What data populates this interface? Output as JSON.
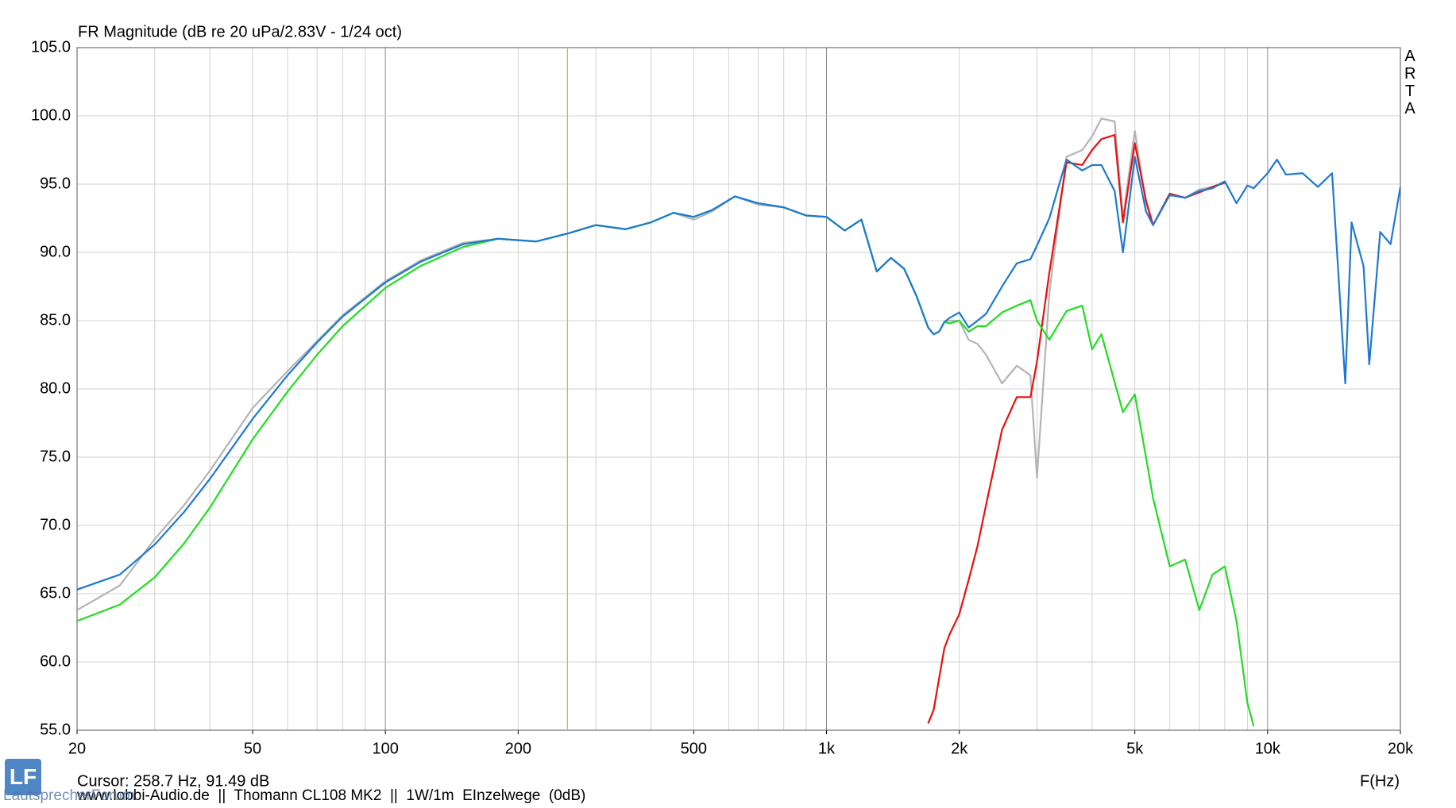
{
  "chart_data": {
    "type": "line",
    "title": "FR Magnitude (dB re 20 uPa/2.83V - 1/24 oct)",
    "side_label": "ARTA",
    "x_label": "F(Hz)",
    "cursor": {
      "label": "Cursor: 258.7 Hz, 91.49 dB",
      "x": 258.7,
      "color": "#c8c800"
    },
    "footer": "www.lobbi-Audio.de  ||  Thomann CL108 MK2  ||  1W/1m  EInzelwege  (0dB)",
    "watermark": "LautsprecherForum",
    "logo": "LF",
    "xscale": "log",
    "grid": true,
    "xlim": [
      20,
      20000
    ],
    "xticks": [
      20,
      50,
      100,
      200,
      500,
      {
        "value": 1000,
        "label": "1k"
      },
      {
        "value": 2000,
        "label": "2k"
      },
      {
        "value": 5000,
        "label": "5k"
      },
      {
        "value": 10000,
        "label": "10k"
      },
      {
        "value": 20000,
        "label": "20k"
      }
    ],
    "ylim": [
      55,
      105
    ],
    "yticks": [
      {
        "value": 55,
        "label": "55.0"
      },
      {
        "value": 60,
        "label": "60.0"
      },
      {
        "value": 65,
        "label": "65.0"
      },
      {
        "value": 70,
        "label": "70.0"
      },
      {
        "value": 75,
        "label": "75.0"
      },
      {
        "value": 80,
        "label": "80.0"
      },
      {
        "value": 85,
        "label": "85.0"
      },
      {
        "value": 90,
        "label": "90.0"
      },
      {
        "value": 95,
        "label": "95.0"
      },
      {
        "value": 100,
        "label": "100.0"
      },
      {
        "value": 105,
        "label": "105.0"
      }
    ],
    "x": [
      20,
      25,
      30,
      35,
      40,
      50,
      60,
      70,
      80,
      100,
      120,
      150,
      180,
      220,
      260,
      300,
      350,
      400,
      450,
      500,
      550,
      620,
      700,
      800,
      900,
      1000,
      1100,
      1200,
      1300,
      1400,
      1500,
      1600,
      1700,
      1750,
      1800,
      1850,
      1900,
      2000,
      2100,
      2200,
      2300,
      2500,
      2700,
      2900,
      3000,
      3200,
      3500,
      3800,
      4000,
      4200,
      4500,
      4700,
      5000,
      5300,
      5500,
      6000,
      6500,
      7000,
      7500,
      8000,
      8500,
      9000,
      9300,
      10000,
      10500,
      11000,
      12000,
      13000,
      14000,
      15000,
      15500,
      16500,
      17000,
      18000,
      19000,
      20000
    ],
    "series": [
      {
        "color": "#b4b4b4",
        "values": [
          63.8,
          65.6,
          69.0,
          71.5,
          74.0,
          78.6,
          81.3,
          83.5,
          85.4,
          87.9,
          89.4,
          90.7,
          91.0,
          90.8,
          91.4,
          92.0,
          91.7,
          92.2,
          92.9,
          92.4,
          93.0,
          94.1,
          93.5,
          93.3,
          92.7,
          92.6,
          91.6,
          92.4,
          88.6,
          89.6,
          88.8,
          86.8,
          84.5,
          84.0,
          84.2,
          84.9,
          85.0,
          85.0,
          83.6,
          83.3,
          82.5,
          80.4,
          81.7,
          81.0,
          73.5,
          87.0,
          97.0,
          97.5,
          98.5,
          99.8,
          99.6,
          92.5,
          98.9,
          93.6,
          92.0,
          94.3,
          94.0,
          94.6,
          94.8,
          95.2,
          null,
          null,
          null,
          null,
          null,
          null,
          null,
          null,
          null,
          null,
          null,
          null,
          null,
          null,
          null,
          null
        ]
      },
      {
        "color": "#e81010",
        "values": [
          null,
          null,
          null,
          null,
          null,
          null,
          null,
          null,
          null,
          null,
          null,
          null,
          null,
          null,
          null,
          null,
          null,
          null,
          null,
          null,
          null,
          null,
          null,
          null,
          null,
          null,
          null,
          null,
          null,
          null,
          null,
          null,
          55.5,
          56.5,
          58.8,
          61.0,
          62.0,
          63.5,
          66.0,
          68.5,
          71.5,
          77.0,
          79.4,
          79.4,
          82.0,
          88.5,
          96.6,
          96.4,
          97.5,
          98.3,
          98.6,
          92.2,
          98.0,
          93.8,
          92.0,
          94.3,
          94.0,
          94.4,
          94.8,
          95.1,
          null,
          null,
          null,
          null,
          null,
          null,
          null,
          null,
          null,
          null,
          null,
          null,
          null,
          null,
          null,
          null
        ]
      },
      {
        "color": "#22dd22",
        "values": [
          63.0,
          64.2,
          66.2,
          68.7,
          71.3,
          76.3,
          79.8,
          82.5,
          84.6,
          87.4,
          89.0,
          90.4,
          91.0,
          90.8,
          91.4,
          92.0,
          91.7,
          92.2,
          92.9,
          92.6,
          93.1,
          94.1,
          93.6,
          93.3,
          92.7,
          92.6,
          91.6,
          92.4,
          88.6,
          89.6,
          88.8,
          86.8,
          84.5,
          84.0,
          84.2,
          84.9,
          84.8,
          85.0,
          84.2,
          84.6,
          84.6,
          85.6,
          86.1,
          86.5,
          85.0,
          83.6,
          85.7,
          86.1,
          82.9,
          84.0,
          80.5,
          78.3,
          79.6,
          75.0,
          72.0,
          67.0,
          67.5,
          63.8,
          66.4,
          67.0,
          63.0,
          57.0,
          55.3,
          null,
          null,
          null,
          null,
          null,
          null,
          null,
          null,
          null,
          null,
          null,
          null,
          null
        ]
      },
      {
        "color": "#1e78d2",
        "values": [
          65.3,
          66.4,
          68.6,
          71.0,
          73.4,
          77.8,
          81.0,
          83.4,
          85.3,
          87.8,
          89.3,
          90.6,
          91.0,
          90.8,
          91.4,
          92.0,
          91.7,
          92.2,
          92.9,
          92.6,
          93.1,
          94.1,
          93.6,
          93.3,
          92.7,
          92.6,
          91.6,
          92.4,
          88.6,
          89.6,
          88.8,
          86.8,
          84.5,
          84.0,
          84.2,
          84.9,
          85.2,
          85.6,
          84.5,
          85.0,
          85.5,
          87.5,
          89.2,
          89.5,
          90.5,
          92.5,
          96.8,
          96.0,
          96.4,
          96.4,
          94.5,
          90.0,
          97.0,
          93.0,
          92.0,
          94.2,
          94.0,
          94.5,
          94.7,
          95.2,
          93.6,
          94.9,
          94.7,
          95.8,
          96.8,
          95.7,
          95.8,
          94.8,
          95.8,
          80.4,
          92.2,
          89.0,
          81.8,
          91.5,
          90.6,
          94.8
        ]
      }
    ]
  }
}
